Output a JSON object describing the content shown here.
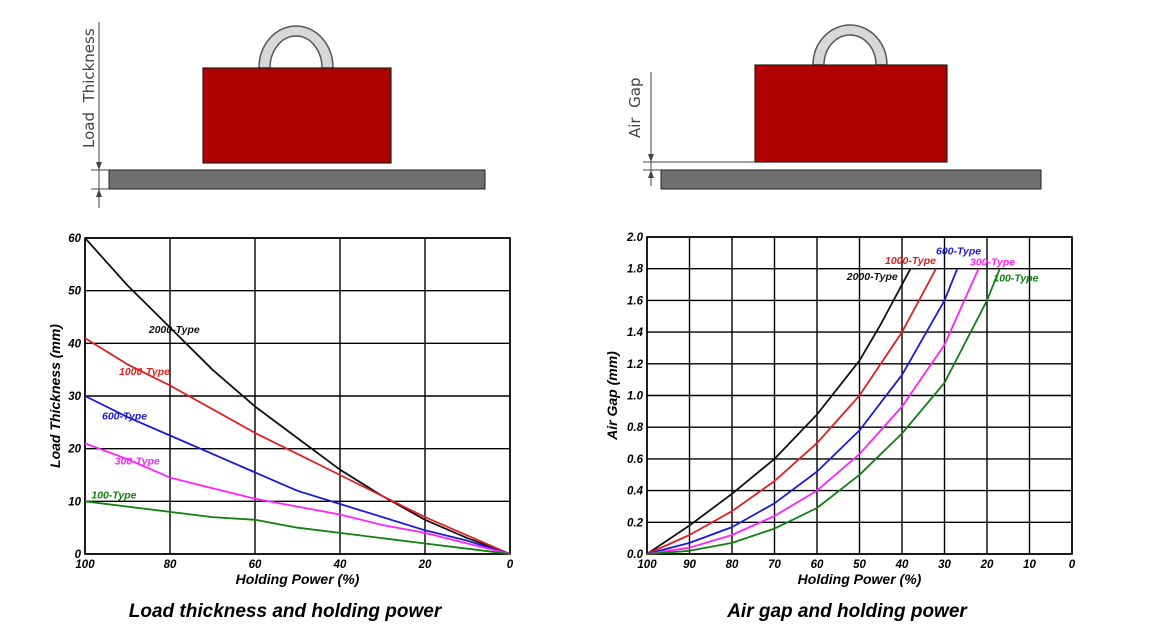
{
  "diagrams": {
    "left": {
      "dimension_label": "Load  Thickness"
    },
    "right": {
      "dimension_label": "Air  Gap"
    },
    "colors": {
      "magnet": "#b00000",
      "plate": "#6f6f6f",
      "handle": "#d8d8d8"
    }
  },
  "chart_data": [
    {
      "type": "line",
      "caption": "Load thickness and holding power",
      "xlabel": "Holding Power (%)",
      "ylabel": "Load Thickness (mm)",
      "xlim": [
        100,
        0
      ],
      "ylim": [
        0,
        60
      ],
      "xticks": [
        100,
        80,
        60,
        40,
        20,
        0
      ],
      "yticks": [
        0,
        10,
        20,
        30,
        40,
        50,
        60
      ],
      "x_reversed": true,
      "grid": true,
      "series": [
        {
          "name": "2000-Type",
          "color": "#111111",
          "label_at": [
            85,
            42
          ],
          "points": [
            [
              100,
              60
            ],
            [
              90,
              51
            ],
            [
              80,
              43
            ],
            [
              70,
              35
            ],
            [
              60,
              28
            ],
            [
              50,
              22
            ],
            [
              40,
              16
            ],
            [
              30,
              11
            ],
            [
              20,
              6.5
            ],
            [
              10,
              3
            ],
            [
              0,
              0
            ]
          ]
        },
        {
          "name": "1000-Type",
          "color": "#e02020",
          "label_at": [
            92,
            34
          ],
          "points": [
            [
              100,
              41
            ],
            [
              90,
              36
            ],
            [
              80,
              32
            ],
            [
              70,
              27.5
            ],
            [
              60,
              23
            ],
            [
              50,
              19
            ],
            [
              40,
              15
            ],
            [
              30,
              11
            ],
            [
              20,
              7
            ],
            [
              10,
              3.5
            ],
            [
              0,
              0
            ]
          ]
        },
        {
          "name": "600-Type",
          "color": "#1a1ad8",
          "label_at": [
            96,
            25.5
          ],
          "points": [
            [
              100,
              30
            ],
            [
              90,
              26
            ],
            [
              80,
              22.5
            ],
            [
              70,
              19
            ],
            [
              60,
              15.5
            ],
            [
              50,
              12
            ],
            [
              40,
              9.5
            ],
            [
              30,
              7
            ],
            [
              20,
              4.5
            ],
            [
              10,
              2.5
            ],
            [
              0,
              0
            ]
          ]
        },
        {
          "name": "300-Type",
          "color": "#ff22ff",
          "label_at": [
            93,
            17
          ],
          "points": [
            [
              100,
              21
            ],
            [
              90,
              18
            ],
            [
              80,
              14.5
            ],
            [
              70,
              12.5
            ],
            [
              60,
              10.5
            ],
            [
              50,
              9
            ],
            [
              40,
              7.5
            ],
            [
              30,
              5.5
            ],
            [
              20,
              4
            ],
            [
              10,
              2
            ],
            [
              0,
              0
            ]
          ]
        },
        {
          "name": "100-Type",
          "color": "#108010",
          "label_at": [
            98.5,
            10.5
          ],
          "points": [
            [
              100,
              10
            ],
            [
              90,
              9
            ],
            [
              80,
              8
            ],
            [
              70,
              7
            ],
            [
              60,
              6.5
            ],
            [
              50,
              5
            ],
            [
              40,
              4
            ],
            [
              30,
              3
            ],
            [
              20,
              2
            ],
            [
              10,
              1
            ],
            [
              0,
              0
            ]
          ]
        }
      ]
    },
    {
      "type": "line",
      "caption": "Air gap and holding power",
      "xlabel": "Holding Power (%)",
      "ylabel": "Air Gap (mm)",
      "xlim": [
        100,
        10
      ],
      "ylim": [
        0,
        2.0
      ],
      "xticks": [
        100,
        90,
        80,
        70,
        60,
        50,
        40,
        30,
        20,
        10,
        0
      ],
      "yticks": [
        0.0,
        0.2,
        0.4,
        0.6,
        0.8,
        1.0,
        1.2,
        1.4,
        1.6,
        1.8,
        2.0
      ],
      "x_reversed": true,
      "grid": true,
      "series": [
        {
          "name": "2000-Type",
          "color": "#111111",
          "label_at": [
            53,
            1.73
          ],
          "points": [
            [
              100,
              0
            ],
            [
              90,
              0.18
            ],
            [
              80,
              0.38
            ],
            [
              70,
              0.6
            ],
            [
              60,
              0.88
            ],
            [
              50,
              1.22
            ],
            [
              45,
              1.45
            ],
            [
              40,
              1.7
            ],
            [
              38,
              1.8
            ]
          ]
        },
        {
          "name": "1000-Type",
          "color": "#e02020",
          "label_at": [
            44,
            1.83
          ],
          "points": [
            [
              100,
              0
            ],
            [
              90,
              0.12
            ],
            [
              80,
              0.27
            ],
            [
              70,
              0.46
            ],
            [
              60,
              0.7
            ],
            [
              50,
              1.0
            ],
            [
              40,
              1.4
            ],
            [
              35,
              1.65
            ],
            [
              32,
              1.8
            ]
          ]
        },
        {
          "name": "600-Type",
          "color": "#1a1ad8",
          "label_at": [
            32,
            1.89
          ],
          "points": [
            [
              100,
              0
            ],
            [
              90,
              0.07
            ],
            [
              80,
              0.17
            ],
            [
              70,
              0.32
            ],
            [
              60,
              0.52
            ],
            [
              50,
              0.78
            ],
            [
              40,
              1.13
            ],
            [
              30,
              1.6
            ],
            [
              27,
              1.8
            ]
          ]
        },
        {
          "name": "300-Type",
          "color": "#ff22ff",
          "label_at": [
            24,
            1.82
          ],
          "points": [
            [
              100,
              0
            ],
            [
              90,
              0.04
            ],
            [
              80,
              0.12
            ],
            [
              70,
              0.24
            ],
            [
              60,
              0.4
            ],
            [
              50,
              0.63
            ],
            [
              40,
              0.93
            ],
            [
              30,
              1.32
            ],
            [
              22,
              1.8
            ]
          ]
        },
        {
          "name": "100-Type",
          "color": "#108010",
          "label_at": [
            18.5,
            1.72
          ],
          "points": [
            [
              100,
              0
            ],
            [
              90,
              0.02
            ],
            [
              80,
              0.07
            ],
            [
              70,
              0.16
            ],
            [
              60,
              0.29
            ],
            [
              50,
              0.5
            ],
            [
              40,
              0.76
            ],
            [
              30,
              1.08
            ],
            [
              20,
              1.6
            ],
            [
              17,
              1.8
            ]
          ]
        }
      ]
    }
  ]
}
